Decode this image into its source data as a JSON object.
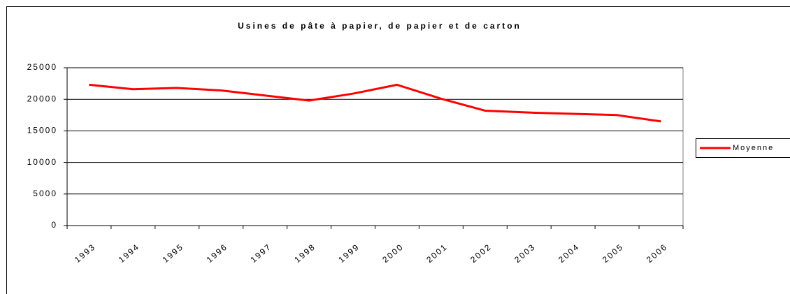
{
  "chart_data": {
    "type": "line",
    "title": "Usines de pâte à papier, de papier et de carton",
    "categories": [
      "1993",
      "1994",
      "1995",
      "1996",
      "1997",
      "1998",
      "1999",
      "2000",
      "2001",
      "2002",
      "2003",
      "2004",
      "2005",
      "2006"
    ],
    "series": [
      {
        "name": "Moyenne",
        "color": "#ff0000",
        "values": [
          22300,
          21600,
          21800,
          21400,
          20600,
          19800,
          20900,
          22300,
          20100,
          18200,
          17900,
          17700,
          17500,
          16500
        ]
      }
    ],
    "ylim": [
      0,
      25000
    ],
    "yticks": [
      0,
      5000,
      10000,
      15000,
      20000,
      25000
    ],
    "grid": true,
    "legend": "right"
  }
}
